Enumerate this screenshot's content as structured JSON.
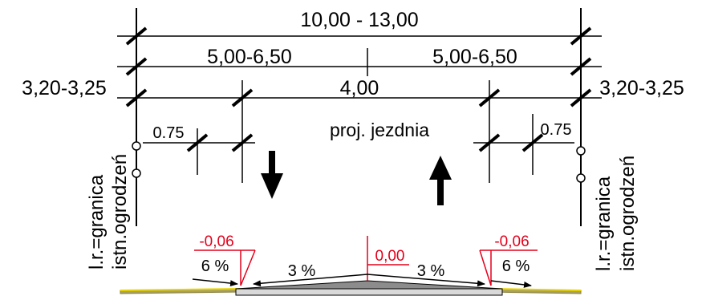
{
  "dimensions": {
    "total_width": "10,00 - 13,00",
    "half_left": "5,00-6,50",
    "half_right": "5,00-6,50",
    "verge_left": "3,20-3,25",
    "verge_right": "3,20-3,25",
    "carriageway": "4,00",
    "shoulder_left": "0.75",
    "shoulder_right": "0.75"
  },
  "labels": {
    "roadway": "proj. jezdnia",
    "boundary_left_line1": "l.r.=granica",
    "boundary_left_line2": "istn.ogrodzeń",
    "boundary_right_line1": "l.r.=granica",
    "boundary_right_line2": "istn.ogrodzeń"
  },
  "elevations": {
    "left": "-0,06",
    "center": "0,00",
    "right": "-0,06"
  },
  "slopes": {
    "left_shoulder": "6 %",
    "left_lane": "3 %",
    "right_lane": "3 %",
    "right_shoulder": "6 %"
  },
  "colors": {
    "line": "#000000",
    "elevation": "#e3001b",
    "asphalt": "#8c8c8c",
    "base": "#d9d9d9",
    "verge": "#a8a060",
    "verge_edge": "#e8d300"
  },
  "icons": {
    "down_arrow": "arrow-down-icon",
    "up_arrow": "arrow-up-icon"
  }
}
